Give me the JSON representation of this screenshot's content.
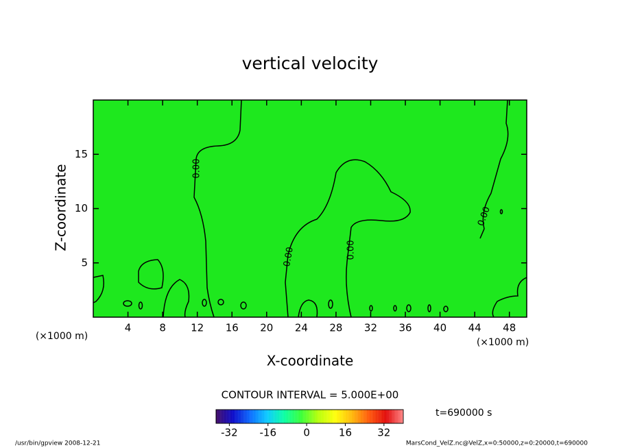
{
  "chart_data": {
    "type": "contour",
    "title": "vertical velocity",
    "x_label": "X-coordinate",
    "y_label": "Z-coordinate",
    "x_units": "(×1000 m)",
    "xlim": [
      0,
      50
    ],
    "ylim": [
      0,
      20
    ],
    "xticks": [
      4,
      8,
      12,
      16,
      20,
      24,
      28,
      32,
      36,
      40,
      44,
      48
    ],
    "yticks": [
      5,
      10,
      15
    ],
    "field_color": "#1ee81e",
    "contour_labels": [
      "0.00",
      "0.00",
      "0.00",
      "0.00"
    ],
    "contour_interval": "CONTOUR INTERVAL = 5.000E+00",
    "time_label": "t=690000 s",
    "colorbar": {
      "clim": [
        -37.5,
        40
      ],
      "ticks": [
        -32,
        -16,
        0,
        16,
        32
      ],
      "colors": [
        "#3a0060",
        "#0000c8",
        "#0064ff",
        "#00c8ff",
        "#00ffa0",
        "#30ff30",
        "#b4ff00",
        "#ffff00",
        "#ffb400",
        "#ff5000",
        "#e00000",
        "#ff8080"
      ]
    },
    "footer_left": "/usr/bin/gpview   2008-12-21",
    "footer_right": "MarsCond_VelZ.nc@VelZ,x=0:50000,z=0:20000,t=690000"
  }
}
